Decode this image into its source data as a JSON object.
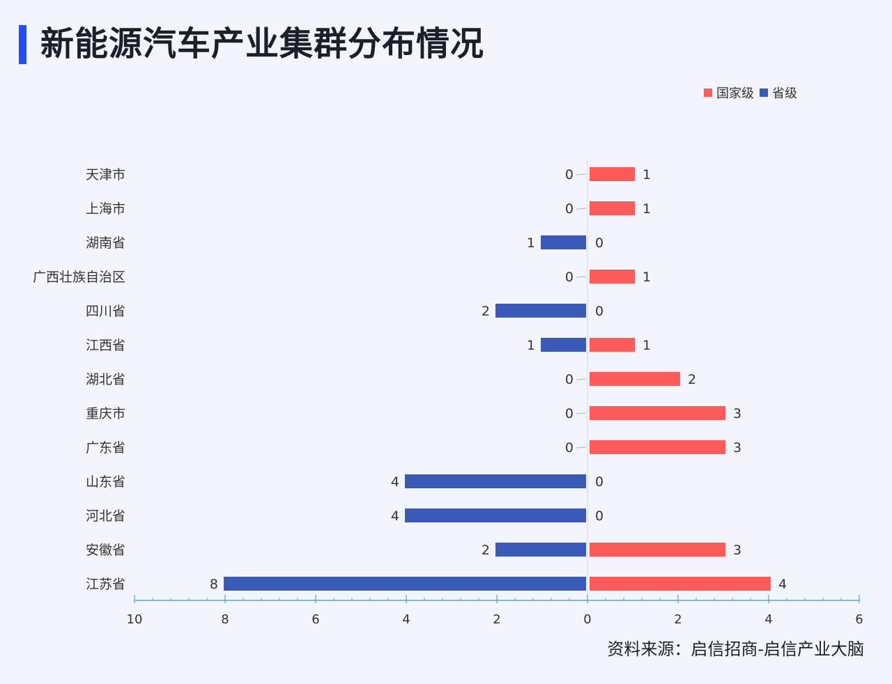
{
  "title": "新能源汽车产业集群分布情况",
  "source": "资料来源：启信招商-启信产业大脑",
  "colors": {
    "national": "#ff5b5b",
    "provincial": "#3a5ab8",
    "title_accent": "#1f4fff",
    "axis": "#5aa3c8"
  },
  "chart_data": {
    "type": "bar",
    "orientation": "horizontal-diverging",
    "categories": [
      "天津市",
      "上海市",
      "湖南省",
      "广西壮族自治区",
      "四川省",
      "江西省",
      "湖北省",
      "重庆市",
      "广东省",
      "山东省",
      "河北省",
      "安徽省",
      "江苏省"
    ],
    "series": [
      {
        "name": "国家级",
        "side": "right",
        "values": [
          1,
          1,
          0,
          1,
          0,
          1,
          2,
          3,
          3,
          0,
          0,
          3,
          4
        ]
      },
      {
        "name": "省级",
        "side": "left",
        "values": [
          0,
          0,
          1,
          0,
          2,
          1,
          0,
          0,
          0,
          4,
          4,
          2,
          8
        ]
      }
    ],
    "xlim_left": [
      0,
      10
    ],
    "xlim_right": [
      0,
      6
    ],
    "xticks": [
      "10",
      "8",
      "6",
      "4",
      "2",
      "0",
      "2",
      "4",
      "6"
    ],
    "legend_position": "top-right"
  }
}
